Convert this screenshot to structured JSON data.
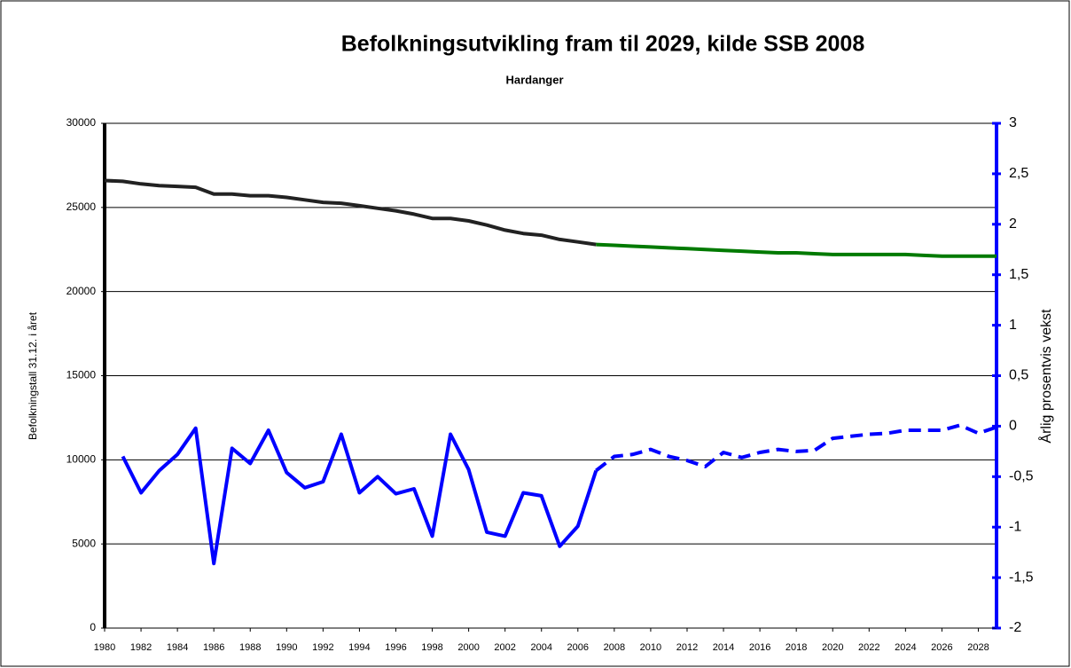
{
  "chart_data": {
    "type": "line",
    "title": "Befolkningsutvikling fram til 2029, kilde SSB 2008",
    "subtitle": "Hardanger",
    "y_label": "Befolkningstall 31.12. i året",
    "y2_label": "Årlig prosentvis vekst",
    "x": [
      1980,
      1981,
      1982,
      1983,
      1984,
      1985,
      1986,
      1987,
      1988,
      1989,
      1990,
      1991,
      1992,
      1993,
      1994,
      1995,
      1996,
      1997,
      1998,
      1999,
      2000,
      2001,
      2002,
      2003,
      2004,
      2005,
      2006,
      2007,
      2008,
      2009,
      2010,
      2011,
      2012,
      2013,
      2014,
      2015,
      2016,
      2017,
      2018,
      2019,
      2020,
      2021,
      2022,
      2023,
      2024,
      2025,
      2026,
      2027,
      2028,
      2029
    ],
    "xlim": [
      1980,
      2029
    ],
    "xticks": [
      1980,
      1982,
      1984,
      1986,
      1988,
      1990,
      1992,
      1994,
      1996,
      1998,
      2000,
      2002,
      2004,
      2006,
      2008,
      2010,
      2012,
      2014,
      2016,
      2018,
      2020,
      2022,
      2024,
      2026,
      2028
    ],
    "ylim": [
      0,
      30000
    ],
    "yticks": [
      0,
      5000,
      10000,
      15000,
      20000,
      25000,
      30000
    ],
    "y2lim": [
      -2,
      3
    ],
    "y2ticks": [
      -2,
      {
        "value": -1.5,
        "label": "-1,5"
      },
      -1,
      {
        "value": -0.5,
        "label": "-0,5"
      },
      0,
      {
        "value": 0.5,
        "label": "0,5"
      },
      1,
      {
        "value": 1.5,
        "label": "1,5"
      },
      2,
      {
        "value": 2.5,
        "label": "2,5"
      },
      3
    ],
    "grid": true,
    "series": [
      {
        "color": "#222222",
        "axis": "y",
        "dashed": false,
        "values": [
          26600,
          26550,
          26400,
          26300,
          26250,
          26200,
          25800,
          25800,
          25700,
          25700,
          25600,
          25450,
          25300,
          25250,
          25100,
          24950,
          24800,
          24600,
          24350,
          24350,
          24200,
          23950,
          23650,
          23450,
          23350,
          23100,
          22950,
          22800,
          null,
          null,
          null,
          null,
          null,
          null,
          null,
          null,
          null,
          null,
          null,
          null,
          null,
          null,
          null,
          null,
          null,
          null,
          null,
          null,
          null,
          null
        ]
      },
      {
        "color": "#007a00",
        "axis": "y",
        "dashed": false,
        "values": [
          null,
          null,
          null,
          null,
          null,
          null,
          null,
          null,
          null,
          null,
          null,
          null,
          null,
          null,
          null,
          null,
          null,
          null,
          null,
          null,
          null,
          null,
          null,
          null,
          null,
          null,
          null,
          22800,
          22750,
          22700,
          22650,
          22600,
          22550,
          22500,
          22450,
          22400,
          22350,
          22300,
          22300,
          22250,
          22200,
          22200,
          22200,
          22200,
          22200,
          22150,
          22100,
          22100,
          22100,
          22100
        ]
      },
      {
        "color": "#0000ff",
        "axis": "y2",
        "dashed": false,
        "values": [
          null,
          -0.3,
          -0.66,
          -0.44,
          -0.28,
          -0.02,
          -1.36,
          -0.22,
          -0.37,
          -0.04,
          -0.46,
          -0.61,
          -0.55,
          -0.08,
          -0.66,
          -0.5,
          -0.67,
          -0.62,
          -1.09,
          -0.08,
          -0.43,
          -1.05,
          -1.09,
          -0.66,
          -0.69,
          -1.19,
          -0.99,
          -0.44,
          null,
          null,
          null,
          null,
          null,
          null,
          null,
          null,
          null,
          null,
          null,
          null,
          null,
          null,
          null,
          null,
          null,
          null,
          null,
          null,
          null,
          null
        ]
      },
      {
        "color": "#0000ff",
        "axis": "y2",
        "dashed": true,
        "values": [
          null,
          null,
          null,
          null,
          null,
          null,
          null,
          null,
          null,
          null,
          null,
          null,
          null,
          null,
          null,
          null,
          null,
          null,
          null,
          null,
          null,
          null,
          null,
          null,
          null,
          null,
          null,
          -0.44,
          -0.3,
          -0.28,
          -0.23,
          -0.3,
          -0.34,
          -0.4,
          -0.26,
          -0.31,
          -0.26,
          -0.23,
          -0.25,
          -0.24,
          -0.12,
          -0.1,
          -0.08,
          -0.07,
          -0.04,
          -0.04,
          -0.04,
          0.01,
          -0.07,
          -0.01
        ]
      }
    ]
  }
}
